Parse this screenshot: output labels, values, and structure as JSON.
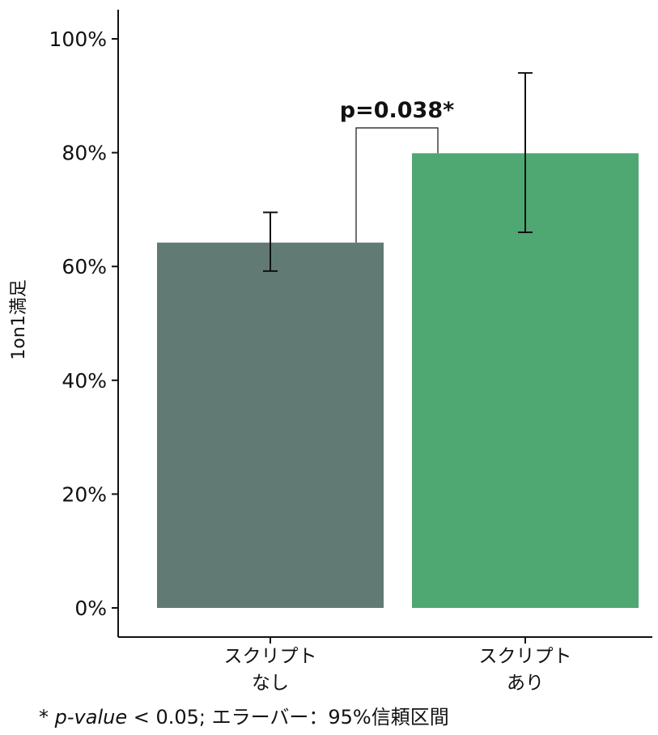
{
  "chart_data": {
    "type": "bar",
    "categories": [
      [
        "スクリプト",
        "なし"
      ],
      [
        "スクリプト",
        "あり"
      ]
    ],
    "values": [
      64.2,
      79.9
    ],
    "error_bars": [
      {
        "low": 59.2,
        "high": 69.5
      },
      {
        "low": 66.0,
        "high": 94.0
      }
    ],
    "colors": [
      "#627a74",
      "#4fa772"
    ],
    "ylabel": "1on1満足",
    "ylim": [
      0,
      100
    ],
    "yticks": [
      0,
      20,
      40,
      60,
      80,
      100
    ],
    "ytick_labels": [
      "0%",
      "20%",
      "40%",
      "60%",
      "80%",
      "100%"
    ],
    "grid": false,
    "significance": {
      "label": "p=0.038*",
      "between": [
        0,
        1
      ]
    }
  },
  "footnote": {
    "prefix": "* ",
    "italic": "p-value",
    "rest": " < 0.05; エラーバー：95%信頼区間"
  }
}
